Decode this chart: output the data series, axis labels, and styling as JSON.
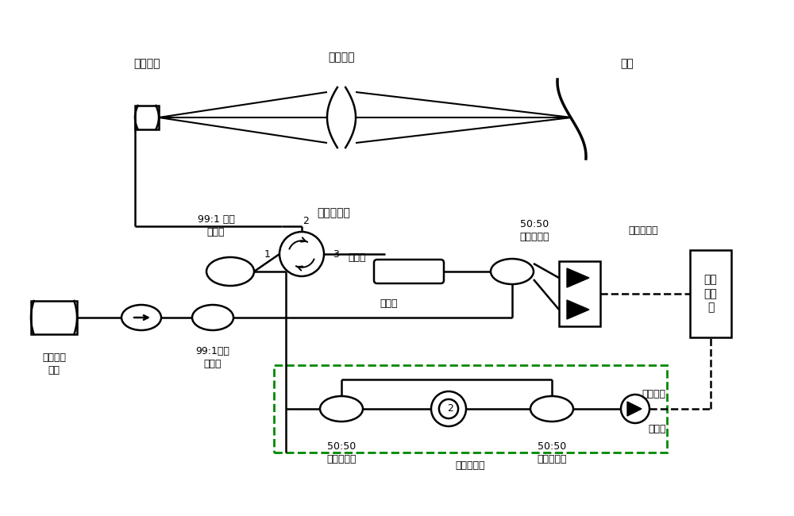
{
  "bg_color": "#ffffff",
  "line_color": "#000000",
  "green_color": "#008800",
  "labels": {
    "guang_xian_duan_mian": "光纤端面",
    "ju_jiao_xi_tong": "聚焦系统",
    "mu_biao": "目标",
    "guang_xian_huan_xing_qi": "光纤环形器",
    "99_1_top": "99:1 光纤\n耦合器",
    "ce_liang_lu": "测量路",
    "can_kao_lu": "参考路",
    "50_50_right": "50:50\n光纤耦合器",
    "ping_heng": "平衡探测器",
    "shu_ju": "数据\n采集\n卡",
    "ke_tiao_xie": "可调谐激\n光器",
    "99_1_bot": "99:1光纤\n耦合器",
    "50_50_left": "50:50\n光纤耦合器",
    "fu_zhu": "辅助干涉仪",
    "50_50_mid": "50:50\n光纤耦合器",
    "tan_ce_qi": "探测器",
    "shi_zhong": "时钟信号",
    "port1": "1",
    "port2": "2",
    "port3": "3",
    "coil2": "2"
  },
  "figsize": [
    10.0,
    6.5
  ],
  "dpi": 100
}
